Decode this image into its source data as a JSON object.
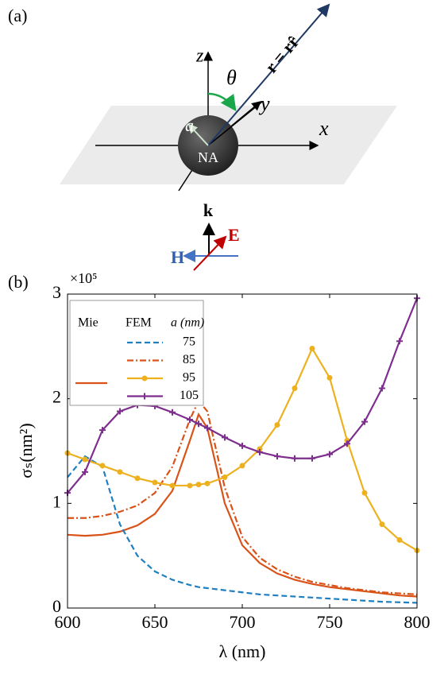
{
  "diagram": {
    "panel_label": "(a)",
    "axis_z": "z",
    "axis_y": "y",
    "axis_x": "x",
    "angle": "θ",
    "radius": "a",
    "particle": "NA",
    "position_vector": "r = rr̂",
    "wave_k": "k",
    "field_h": "H",
    "field_e": "E"
  },
  "chart_data": {
    "type": "line",
    "panel_label": "(b)",
    "xlabel": "λ (nm)",
    "ylabel": "σₛ(nm²)",
    "y_multiplier": "×10⁵",
    "x": [
      600,
      610,
      620,
      630,
      640,
      650,
      660,
      670,
      675,
      680,
      690,
      700,
      710,
      720,
      730,
      740,
      750,
      760,
      770,
      780,
      790,
      800
    ],
    "xlim": [
      600,
      800
    ],
    "xticks": [
      600,
      650,
      700,
      750,
      800
    ],
    "ylim": [
      0,
      3
    ],
    "yticks": [
      0,
      1,
      2,
      3
    ],
    "legend_headers": [
      "FEM",
      "a (nm)"
    ],
    "series": [
      {
        "name": "Mie",
        "color": "#d95319",
        "linestyle": "solid",
        "values": [
          0.7,
          0.69,
          0.7,
          0.73,
          0.79,
          0.9,
          1.12,
          1.6,
          1.85,
          1.72,
          1.0,
          0.6,
          0.43,
          0.33,
          0.27,
          0.23,
          0.2,
          0.18,
          0.16,
          0.14,
          0.12,
          0.11
        ]
      },
      {
        "name": "75",
        "color": "#1f7fbf",
        "linestyle": "dashed",
        "values": [
          1.25,
          1.45,
          1.35,
          0.8,
          0.5,
          0.35,
          0.27,
          0.22,
          0.2,
          0.19,
          0.17,
          0.15,
          0.13,
          0.12,
          0.11,
          0.1,
          0.09,
          0.08,
          0.07,
          0.06,
          0.055,
          0.05
        ]
      },
      {
        "name": "85",
        "color": "#d95319",
        "linestyle": "dashdot",
        "values": [
          0.86,
          0.86,
          0.88,
          0.92,
          0.98,
          1.1,
          1.35,
          1.8,
          1.98,
          1.88,
          1.15,
          0.68,
          0.48,
          0.37,
          0.3,
          0.25,
          0.22,
          0.19,
          0.17,
          0.15,
          0.14,
          0.13
        ]
      },
      {
        "name": "95",
        "color": "#edb120",
        "linestyle": "solid",
        "marker": "o",
        "values": [
          1.48,
          1.42,
          1.36,
          1.3,
          1.24,
          1.2,
          1.17,
          1.17,
          1.18,
          1.19,
          1.25,
          1.36,
          1.52,
          1.75,
          2.1,
          2.48,
          2.2,
          1.6,
          1.1,
          0.8,
          0.65,
          0.55
        ]
      },
      {
        "name": "105",
        "color": "#7e2f8e",
        "linestyle": "solid",
        "marker": "+",
        "values": [
          1.1,
          1.3,
          1.7,
          1.88,
          1.94,
          1.93,
          1.87,
          1.8,
          1.76,
          1.72,
          1.63,
          1.55,
          1.49,
          1.45,
          1.43,
          1.43,
          1.47,
          1.57,
          1.78,
          2.1,
          2.55,
          2.96
        ]
      }
    ]
  }
}
